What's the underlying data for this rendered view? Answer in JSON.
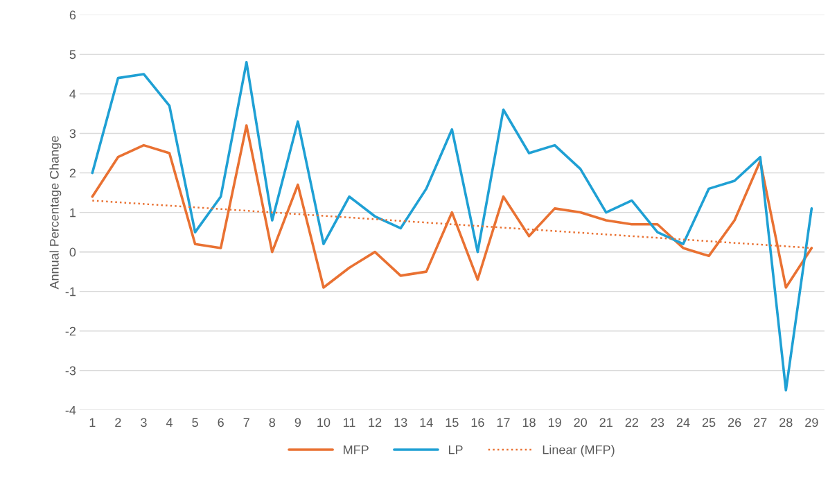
{
  "chart_data": {
    "type": "line",
    "ylabel": "Annual Percentage Change",
    "x": [
      1,
      2,
      3,
      4,
      5,
      6,
      7,
      8,
      9,
      10,
      11,
      12,
      13,
      14,
      15,
      16,
      17,
      18,
      19,
      20,
      21,
      22,
      23,
      24,
      25,
      26,
      27,
      28,
      29
    ],
    "xlim": [
      0.5,
      29.5
    ],
    "xticks": [
      1,
      2,
      3,
      4,
      5,
      6,
      7,
      8,
      9,
      10,
      11,
      12,
      13,
      14,
      15,
      16,
      17,
      18,
      19,
      20,
      21,
      22,
      23,
      24,
      25,
      26,
      27,
      28,
      29
    ],
    "ylim": [
      -4,
      6
    ],
    "yticks": [
      -4,
      -3,
      -2,
      -1,
      0,
      1,
      2,
      3,
      4,
      5,
      6
    ],
    "grid": "y",
    "legend": "bottom",
    "line_style": "solid",
    "series": [
      {
        "name": "MFP",
        "color": "#e97132",
        "values": [
          1.4,
          2.4,
          2.7,
          2.5,
          0.2,
          0.1,
          3.2,
          0.0,
          1.7,
          -0.9,
          -0.4,
          0.0,
          -0.6,
          -0.5,
          1.0,
          -0.7,
          1.4,
          0.4,
          1.1,
          1.0,
          0.8,
          0.7,
          0.7,
          0.1,
          -0.1,
          0.8,
          2.3,
          -0.9,
          0.1
        ]
      },
      {
        "name": "LP",
        "color": "#1fa0d4",
        "values": [
          2.0,
          4.4,
          4.5,
          3.7,
          0.5,
          1.4,
          4.8,
          0.8,
          3.3,
          0.2,
          1.4,
          0.9,
          0.6,
          1.6,
          3.1,
          0.0,
          3.6,
          2.5,
          2.7,
          2.1,
          1.0,
          1.3,
          0.5,
          0.2,
          1.6,
          1.8,
          2.4,
          -3.5,
          1.1
        ]
      },
      {
        "name": "Linear (MFP)",
        "color": "#e97132",
        "type": "line",
        "line_style": "dotted",
        "x": [
          1,
          29
        ],
        "values": [
          1.3,
          0.1
        ]
      }
    ]
  }
}
